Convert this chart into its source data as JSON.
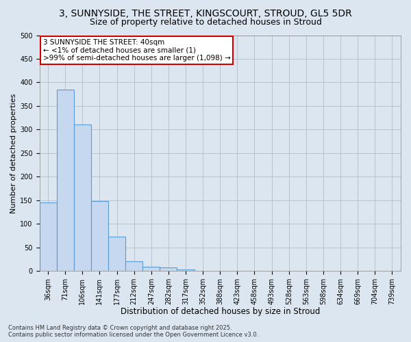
{
  "title_line1": "3, SUNNYSIDE, THE STREET, KINGSCOURT, STROUD, GL5 5DR",
  "title_line2": "Size of property relative to detached houses in Stroud",
  "categories": [
    "36sqm",
    "71sqm",
    "106sqm",
    "141sqm",
    "177sqm",
    "212sqm",
    "247sqm",
    "282sqm",
    "317sqm",
    "352sqm",
    "388sqm",
    "423sqm",
    "458sqm",
    "493sqm",
    "528sqm",
    "563sqm",
    "598sqm",
    "634sqm",
    "669sqm",
    "704sqm",
    "739sqm"
  ],
  "values": [
    145,
    385,
    310,
    148,
    73,
    20,
    9,
    7,
    3,
    1,
    0,
    0,
    0,
    0,
    0,
    0,
    0,
    0,
    0,
    0,
    0
  ],
  "bar_color": "#c5d8f0",
  "bar_edge_color": "#5b9bd5",
  "annotation_line1": "3 SUNNYSIDE THE STREET: 40sqm",
  "annotation_line2": "← <1% of detached houses are smaller (1)",
  "annotation_line3": ">99% of semi-detached houses are larger (1,098) →",
  "annotation_box_color": "#ffffff",
  "annotation_box_edge_color": "#cc0000",
  "xlabel": "Distribution of detached houses by size in Stroud",
  "ylabel": "Number of detached properties",
  "ylim": [
    0,
    500
  ],
  "yticks": [
    0,
    50,
    100,
    150,
    200,
    250,
    300,
    350,
    400,
    450,
    500
  ],
  "grid_color": "#b0bec8",
  "background_color": "#dce6f0",
  "plot_bg_color": "#dce6f0",
  "footnote": "Contains HM Land Registry data © Crown copyright and database right 2025.\nContains public sector information licensed under the Open Government Licence v3.0.",
  "title_fontsize": 10,
  "subtitle_fontsize": 9,
  "xlabel_fontsize": 8.5,
  "ylabel_fontsize": 8,
  "tick_fontsize": 7,
  "annotation_fontsize": 7.5,
  "footnote_fontsize": 6
}
